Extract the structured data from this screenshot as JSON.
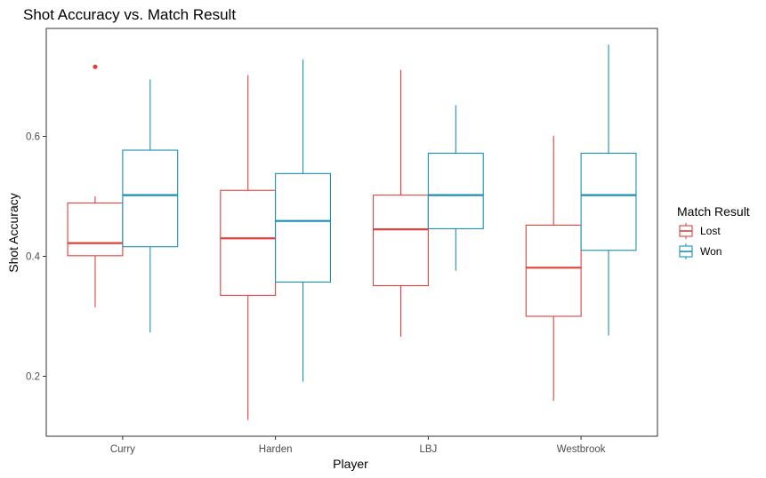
{
  "chart_data": {
    "type": "boxplot",
    "title": "Shot Accuracy vs. Match Result",
    "xlabel": "Player",
    "ylabel": "Shot Accuracy",
    "ylim": [
      0.1,
      0.78
    ],
    "yticks": [
      0.2,
      0.4,
      0.6
    ],
    "ytick_labels": [
      "0.2",
      "0.4",
      "0.6"
    ],
    "categories": [
      "Curry",
      "Harden",
      "LBJ",
      "Westbrook"
    ],
    "grid": false,
    "legend": {
      "title": "Match Result",
      "placement": "right"
    },
    "series": [
      {
        "name": "Lost",
        "color": "#E0413B",
        "boxes": [
          {
            "min": 0.315,
            "q1": 0.401,
            "median": 0.422,
            "q3": 0.489,
            "max": 0.5,
            "outliers": [
              0.716
            ]
          },
          {
            "min": 0.127,
            "q1": 0.335,
            "median": 0.43,
            "q3": 0.51,
            "max": 0.702,
            "outliers": []
          },
          {
            "min": 0.266,
            "q1": 0.351,
            "median": 0.445,
            "q3": 0.502,
            "max": 0.711,
            "outliers": []
          },
          {
            "min": 0.159,
            "q1": 0.3,
            "median": 0.381,
            "q3": 0.452,
            "max": 0.601,
            "outliers": []
          }
        ]
      },
      {
        "name": "Won",
        "color": "#1A8FB5",
        "boxes": [
          {
            "min": 0.273,
            "q1": 0.416,
            "median": 0.502,
            "q3": 0.577,
            "max": 0.695,
            "outliers": []
          },
          {
            "min": 0.191,
            "q1": 0.357,
            "median": 0.459,
            "q3": 0.538,
            "max": 0.728,
            "outliers": []
          },
          {
            "min": 0.376,
            "q1": 0.446,
            "median": 0.502,
            "q3": 0.572,
            "max": 0.652,
            "outliers": []
          },
          {
            "min": 0.268,
            "q1": 0.41,
            "median": 0.502,
            "q3": 0.572,
            "max": 0.753,
            "outliers": []
          }
        ]
      }
    ]
  }
}
